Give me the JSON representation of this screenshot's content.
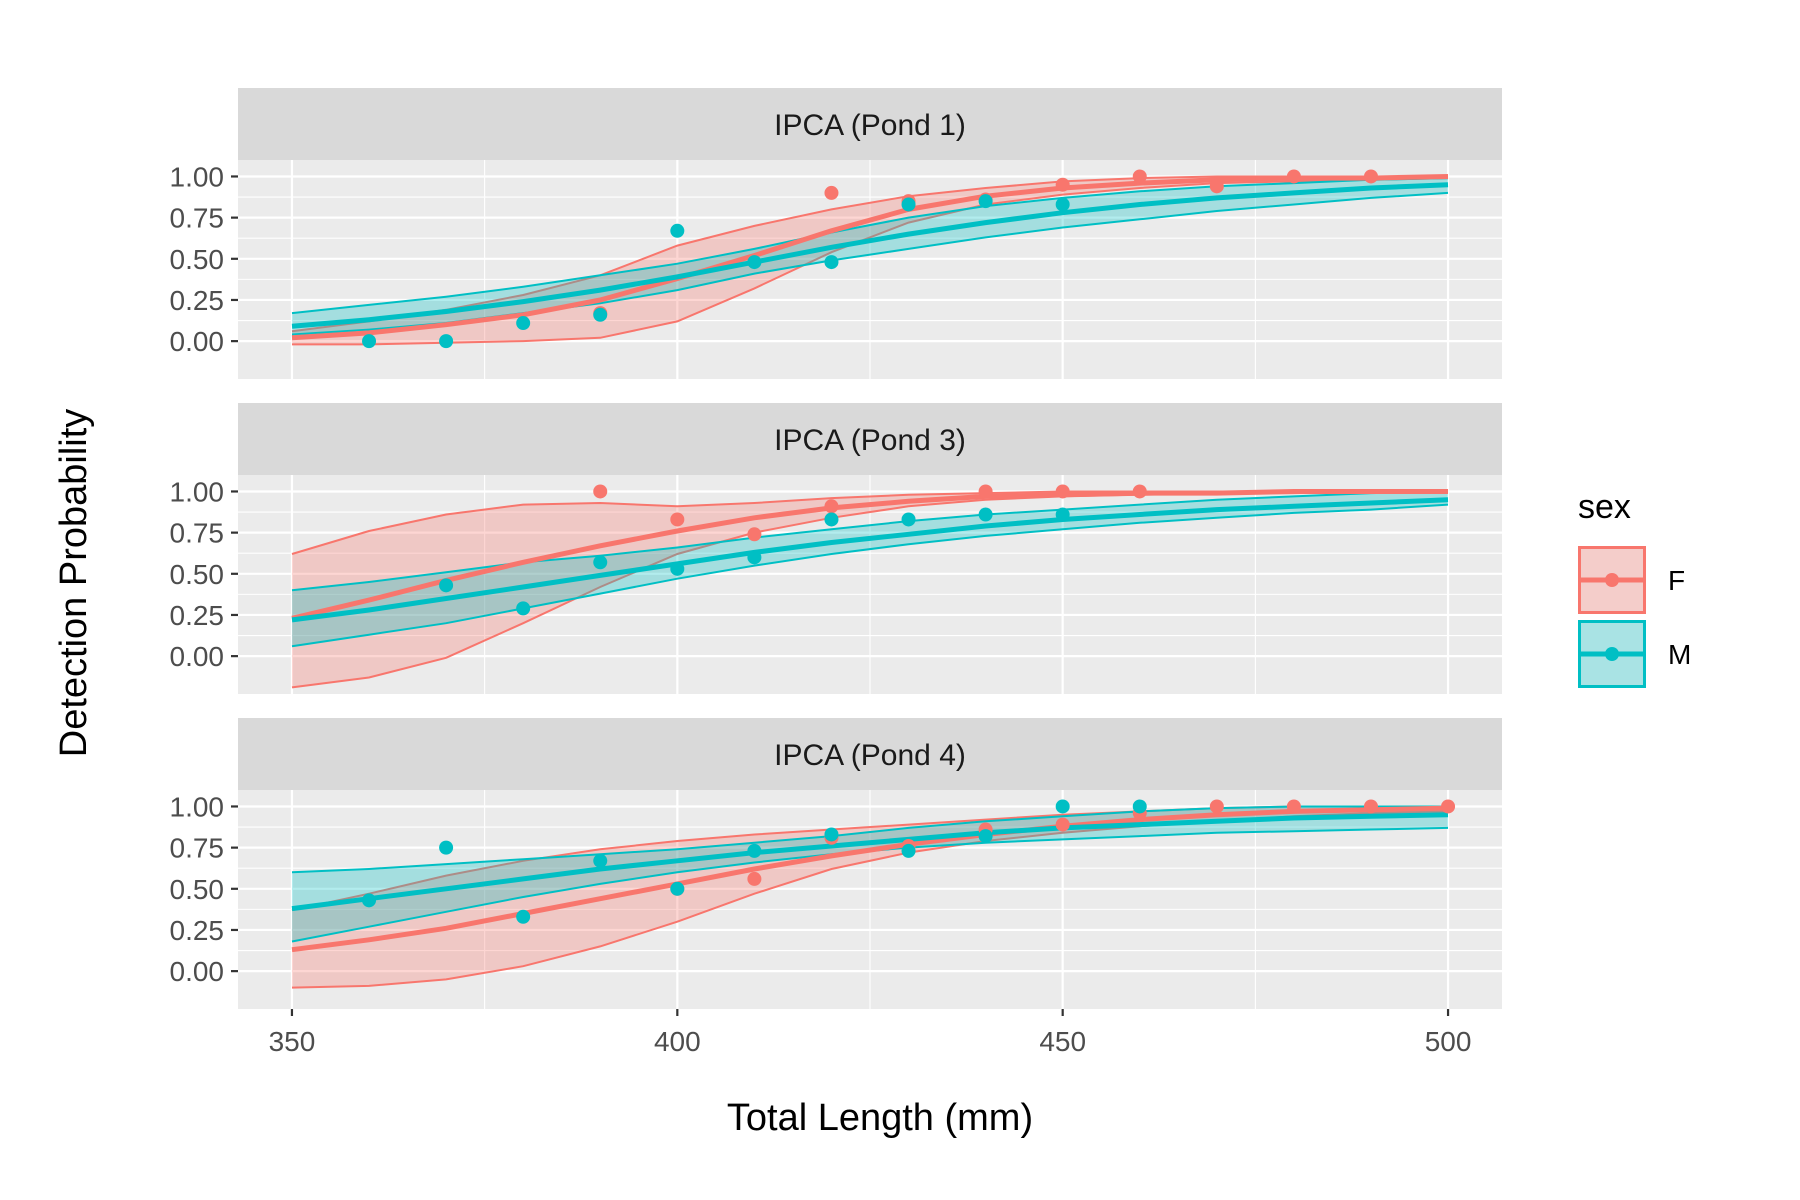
{
  "chart_data": {
    "type": "line",
    "xlabel": "Total Length (mm)",
    "ylabel": "Detection Probability",
    "xlim": [
      343,
      507
    ],
    "ylim": [
      -0.23,
      1.1
    ],
    "x_ticks": [
      350,
      400,
      450,
      500
    ],
    "x_tick_labels": [
      "350",
      "400",
      "450",
      "500"
    ],
    "y_ticks": [
      0,
      0.25,
      0.5,
      0.75,
      1.0
    ],
    "y_tick_labels": [
      "0.00",
      "0.25",
      "0.50",
      "0.75",
      "1.00"
    ],
    "grid": true,
    "legend": {
      "title": "sex",
      "position": "right",
      "entries": [
        {
          "label": "F",
          "color": "#F8766D"
        },
        {
          "label": "M",
          "color": "#00BFC4"
        }
      ]
    },
    "colors": {
      "F": "#F8766D",
      "M": "#00BFC4"
    },
    "curve_x": [
      350,
      360,
      370,
      380,
      390,
      400,
      410,
      420,
      430,
      440,
      450,
      460,
      470,
      480,
      490,
      500
    ],
    "panels": [
      {
        "title": "IPCA (Pond 1)",
        "series": [
          {
            "name": "F",
            "fit": [
              0.02,
              0.05,
              0.1,
              0.16,
              0.25,
              0.38,
              0.52,
              0.67,
              0.8,
              0.88,
              0.93,
              0.96,
              0.98,
              0.99,
              0.99,
              1.0
            ],
            "lower": [
              -0.02,
              -0.02,
              -0.01,
              0.0,
              0.02,
              0.12,
              0.32,
              0.54,
              0.72,
              0.83,
              0.89,
              0.93,
              0.96,
              0.97,
              0.98,
              0.99
            ],
            "upper": [
              0.06,
              0.12,
              0.19,
              0.28,
              0.4,
              0.58,
              0.7,
              0.8,
              0.88,
              0.93,
              0.97,
              0.99,
              1.0,
              1.0,
              1.0,
              1.0
            ],
            "points": {
              "x": [
                390,
                420,
                430,
                440,
                450,
                460,
                470,
                480,
                490
              ],
              "y": [
                0.17,
                0.9,
                0.85,
                0.86,
                0.95,
                1.0,
                0.94,
                1.0,
                1.0
              ]
            }
          },
          {
            "name": "M",
            "fit": [
              0.09,
              0.13,
              0.18,
              0.24,
              0.31,
              0.39,
              0.48,
              0.57,
              0.65,
              0.72,
              0.78,
              0.83,
              0.87,
              0.9,
              0.93,
              0.95
            ],
            "lower": [
              0.04,
              0.07,
              0.11,
              0.17,
              0.23,
              0.31,
              0.41,
              0.49,
              0.56,
              0.63,
              0.69,
              0.74,
              0.79,
              0.83,
              0.87,
              0.9
            ],
            "upper": [
              0.17,
              0.22,
              0.27,
              0.33,
              0.4,
              0.47,
              0.56,
              0.66,
              0.75,
              0.82,
              0.87,
              0.91,
              0.94,
              0.96,
              0.98,
              0.99
            ],
            "points": {
              "x": [
                360,
                370,
                380,
                390,
                400,
                410,
                420,
                430,
                440,
                450
              ],
              "y": [
                0.0,
                0.0,
                0.11,
                0.16,
                0.67,
                0.48,
                0.48,
                0.83,
                0.85,
                0.83
              ]
            }
          }
        ]
      },
      {
        "title": "IPCA (Pond 3)",
        "series": [
          {
            "name": "F",
            "fit": [
              0.23,
              0.34,
              0.46,
              0.57,
              0.67,
              0.76,
              0.84,
              0.9,
              0.94,
              0.97,
              0.98,
              0.99,
              0.99,
              1.0,
              1.0,
              1.0
            ],
            "lower": [
              -0.19,
              -0.13,
              -0.01,
              0.2,
              0.42,
              0.62,
              0.75,
              0.84,
              0.91,
              0.95,
              0.97,
              0.98,
              0.99,
              0.99,
              1.0,
              1.0
            ],
            "upper": [
              0.62,
              0.76,
              0.86,
              0.92,
              0.93,
              0.91,
              0.93,
              0.96,
              0.98,
              0.99,
              1.0,
              1.0,
              1.0,
              1.0,
              1.0,
              1.0
            ],
            "points": {
              "x": [
                390,
                400,
                410,
                420,
                440,
                450,
                460
              ],
              "y": [
                1.0,
                0.83,
                0.74,
                0.91,
                1.0,
                1.0,
                1.0
              ]
            }
          },
          {
            "name": "M",
            "fit": [
              0.22,
              0.28,
              0.35,
              0.42,
              0.49,
              0.56,
              0.63,
              0.69,
              0.74,
              0.79,
              0.83,
              0.86,
              0.89,
              0.91,
              0.93,
              0.95
            ],
            "lower": [
              0.06,
              0.13,
              0.2,
              0.29,
              0.38,
              0.47,
              0.55,
              0.62,
              0.68,
              0.73,
              0.77,
              0.81,
              0.84,
              0.87,
              0.89,
              0.92
            ],
            "upper": [
              0.4,
              0.45,
              0.51,
              0.57,
              0.61,
              0.66,
              0.72,
              0.77,
              0.82,
              0.86,
              0.89,
              0.92,
              0.95,
              0.97,
              0.99,
              1.0
            ],
            "points": {
              "x": [
                370,
                380,
                390,
                400,
                410,
                420,
                430,
                440,
                450
              ],
              "y": [
                0.43,
                0.29,
                0.57,
                0.53,
                0.6,
                0.83,
                0.83,
                0.86,
                0.86
              ]
            }
          }
        ]
      },
      {
        "title": "IPCA (Pond 4)",
        "series": [
          {
            "name": "F",
            "fit": [
              0.13,
              0.19,
              0.26,
              0.35,
              0.44,
              0.53,
              0.62,
              0.7,
              0.77,
              0.83,
              0.88,
              0.92,
              0.95,
              0.97,
              0.98,
              0.99
            ],
            "lower": [
              -0.1,
              -0.09,
              -0.05,
              0.03,
              0.15,
              0.3,
              0.47,
              0.62,
              0.72,
              0.79,
              0.84,
              0.88,
              0.91,
              0.94,
              0.96,
              0.97
            ],
            "upper": [
              0.37,
              0.47,
              0.58,
              0.67,
              0.74,
              0.79,
              0.83,
              0.86,
              0.89,
              0.92,
              0.95,
              0.97,
              0.99,
              1.0,
              1.0,
              1.0
            ],
            "points": {
              "x": [
                400,
                410,
                420,
                430,
                440,
                450,
                460,
                470,
                480,
                490,
                500
              ],
              "y": [
                0.5,
                0.56,
                0.81,
                0.76,
                0.86,
                0.89,
                0.96,
                1.0,
                1.0,
                1.0,
                1.0
              ]
            }
          },
          {
            "name": "M",
            "fit": [
              0.38,
              0.44,
              0.5,
              0.56,
              0.62,
              0.67,
              0.72,
              0.76,
              0.8,
              0.84,
              0.87,
              0.89,
              0.91,
              0.93,
              0.94,
              0.95
            ],
            "lower": [
              0.18,
              0.27,
              0.36,
              0.45,
              0.53,
              0.6,
              0.66,
              0.71,
              0.75,
              0.78,
              0.8,
              0.82,
              0.84,
              0.85,
              0.86,
              0.87
            ],
            "upper": [
              0.6,
              0.62,
              0.65,
              0.68,
              0.71,
              0.74,
              0.78,
              0.82,
              0.87,
              0.91,
              0.94,
              0.97,
              0.99,
              1.0,
              1.0,
              1.0
            ],
            "points": {
              "x": [
                360,
                370,
                380,
                390,
                400,
                410,
                420,
                430,
                440,
                450,
                460
              ],
              "y": [
                0.43,
                0.75,
                0.33,
                0.67,
                0.5,
                0.73,
                0.83,
                0.73,
                0.82,
                1.0,
                1.0
              ]
            }
          }
        ]
      }
    ]
  }
}
